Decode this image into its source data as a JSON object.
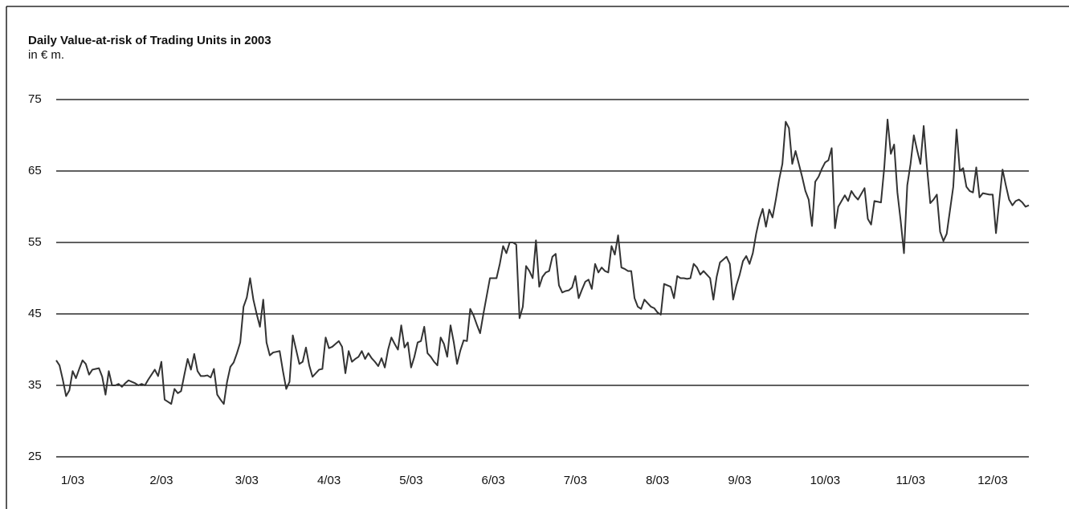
{
  "chart_data": {
    "type": "line",
    "title": "Daily Value-at-risk of Trading Units in 2003",
    "subtitle": "in € m.",
    "color": "#333333",
    "grid": true,
    "xlim": [
      0,
      296
    ],
    "xticks": [
      {
        "value": 5,
        "label": "1/03"
      },
      {
        "value": 32,
        "label": "2/03"
      },
      {
        "value": 58,
        "label": "3/03"
      },
      {
        "value": 83,
        "label": "4/03"
      },
      {
        "value": 108,
        "label": "5/03"
      },
      {
        "value": 133,
        "label": "6/03"
      },
      {
        "value": 158,
        "label": "7/03"
      },
      {
        "value": 183,
        "label": "8/03"
      },
      {
        "value": 208,
        "label": "9/03"
      },
      {
        "value": 234,
        "label": "10/03"
      },
      {
        "value": 260,
        "label": "11/03"
      },
      {
        "value": 285,
        "label": "12/03"
      }
    ],
    "ylim": [
      25,
      75
    ],
    "yticks": [
      25,
      35,
      45,
      55,
      65,
      75
    ],
    "values": [
      38.5,
      37.8,
      35.8,
      33.5,
      34.3,
      37,
      36,
      37.3,
      38.5,
      38,
      36.5,
      37.2,
      37.3,
      37.4,
      36.2,
      33.7,
      37,
      35,
      35,
      35.2,
      34.8,
      35.3,
      35.7,
      35.5,
      35.3,
      35,
      35.2,
      35,
      35.8,
      36.5,
      37.2,
      36.3,
      38.3,
      33,
      32.7,
      32.4,
      34.5,
      33.9,
      34.2,
      36.5,
      38.7,
      37.2,
      39.4,
      37,
      36.3,
      36.3,
      36.4,
      36.1,
      37.3,
      33.7,
      33,
      32.4,
      35.5,
      37.6,
      38.2,
      39.5,
      41,
      46,
      47.3,
      50,
      47,
      45,
      43.2,
      47,
      41,
      39.2,
      39.6,
      39.7,
      39.8,
      37,
      34.5,
      35.5,
      42,
      40,
      38,
      38.3,
      40.3,
      37.8,
      36.2,
      36.7,
      37.2,
      37.3,
      41.7,
      40.2,
      40.4,
      40.8,
      41.2,
      40.4,
      36.7,
      39.8,
      38.3,
      38.7,
      39,
      39.8,
      38.7,
      39.5,
      38.8,
      38.3,
      37.7,
      38.8,
      37.5,
      40,
      41.7,
      40.8,
      40,
      43.4,
      40.3,
      41,
      37.5,
      39,
      41,
      41.2,
      43.2,
      39.5,
      39,
      38.3,
      37.8,
      41.7,
      40.8,
      39,
      43.4,
      41,
      38,
      39.9,
      41.3,
      41.2,
      45.7,
      44.8,
      43.5,
      42.3,
      45,
      47.5,
      50,
      50,
      50,
      52,
      54.5,
      53.5,
      55,
      55,
      54.7,
      44.4,
      46,
      51.7,
      51,
      50,
      55.3,
      48.8,
      50.2,
      50.8,
      51,
      53,
      53.4,
      49,
      48,
      48.2,
      48.3,
      48.7,
      50.3,
      47.2,
      48.4,
      49.5,
      49.8,
      48.5,
      52,
      50.8,
      51.5,
      51,
      50.8,
      54.5,
      53.3,
      56,
      51.5,
      51.3,
      51,
      51,
      47.2,
      46,
      45.7,
      47,
      46.5,
      46,
      45.8,
      45.2,
      44.9,
      49.2,
      49,
      48.8,
      47.2,
      50.3,
      50,
      50,
      49.9,
      50,
      52,
      51.5,
      50.5,
      51,
      50.5,
      50,
      47,
      50.2,
      52.2,
      52.6,
      53,
      52,
      47,
      49,
      50.5,
      52.4,
      53.1,
      52,
      53.5,
      56.2,
      58.3,
      59.7,
      57.2,
      59.6,
      58.5,
      61,
      63.8,
      66,
      71.9,
      71,
      66,
      67.8,
      66,
      64.2,
      62.2,
      61,
      57.3,
      63.5,
      64.2,
      65.3,
      66.2,
      66.5,
      68.2,
      57,
      60,
      60.8,
      61.6,
      60.8,
      62.2,
      61.5,
      61,
      61.8,
      62.6,
      58.3,
      57.5,
      60.8,
      60.7,
      60.6,
      65.5,
      72.2,
      67.4,
      68.7,
      62,
      58,
      53.5,
      63,
      66,
      70,
      67.9,
      66,
      71.3,
      65.5,
      60.5,
      61,
      61.7,
      56.5,
      55.2,
      56.2,
      59.5,
      62.8,
      70.8,
      65,
      65.4,
      62.8,
      62.2,
      62,
      65.5,
      61.3,
      61.9,
      61.8,
      61.7,
      61.7,
      56.3,
      60.8,
      65.2,
      63,
      61,
      60.2,
      60.8,
      61,
      60.6,
      60,
      60.2
    ]
  }
}
